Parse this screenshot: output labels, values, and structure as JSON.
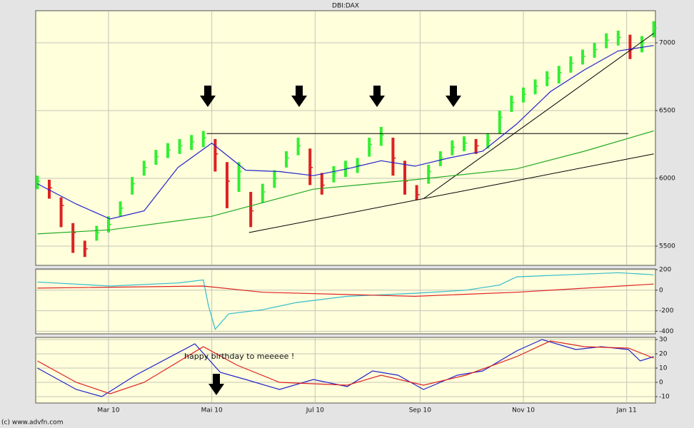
{
  "chart_data": [
    {
      "type": "ohlc",
      "title": "DBI:DAX",
      "x": [
        17,
        24,
        31,
        38,
        45,
        52,
        59,
        66,
        73,
        80,
        87,
        94,
        101,
        108,
        115,
        122,
        129,
        136,
        143,
        150,
        157,
        164,
        171,
        178,
        185,
        192,
        199,
        206,
        213,
        220,
        227,
        234,
        241,
        248,
        255,
        262,
        269,
        276,
        283,
        290,
        297,
        304,
        311,
        318,
        325,
        332,
        339,
        346,
        353,
        360,
        367,
        374,
        381
      ],
      "high": [
        6020,
        5990,
        5860,
        5670,
        5540,
        5650,
        5720,
        5830,
        6010,
        6130,
        6210,
        6260,
        6290,
        6320,
        6350,
        6290,
        6120,
        6120,
        5900,
        5960,
        6060,
        6200,
        6300,
        6220,
        6040,
        6090,
        6130,
        6150,
        6300,
        6380,
        6300,
        6130,
        5950,
        6100,
        6200,
        6280,
        6310,
        6290,
        6330,
        6500,
        6610,
        6670,
        6730,
        6790,
        6830,
        6900,
        6950,
        7000,
        7070,
        7090,
        7060,
        7050,
        7160
      ],
      "low": [
        5920,
        5850,
        5640,
        5450,
        5420,
        5540,
        5600,
        5720,
        5880,
        6020,
        6100,
        6150,
        6180,
        6210,
        6230,
        6050,
        5780,
        5900,
        5640,
        5820,
        5930,
        6080,
        6170,
        5950,
        5880,
        5970,
        6010,
        6040,
        6160,
        6240,
        6020,
        5880,
        5840,
        5960,
        6090,
        6170,
        6200,
        6180,
        6220,
        6330,
        6490,
        6560,
        6620,
        6680,
        6700,
        6780,
        6840,
        6890,
        6960,
        6980,
        6880,
        6930,
        7040
      ],
      "close": [
        5980,
        5930,
        5800,
        5600,
        5480,
        5600,
        5660,
        5780,
        5960,
        6080,
        6160,
        6210,
        6240,
        6270,
        6300,
        6180,
        5980,
        6050,
        5760,
        5900,
        6000,
        6150,
        6240,
        6080,
        5950,
        6040,
        6080,
        6100,
        6250,
        6320,
        6150,
        5980,
        5880,
        6050,
        6150,
        6230,
        6260,
        6240,
        6280,
        6450,
        6560,
        6620,
        6680,
        6740,
        6780,
        6850,
        6900,
        6950,
        7020,
        7040,
        6950,
        7000,
        7110
      ],
      "up_color": "#33ee33",
      "down_color": "#dd2222",
      "series": [
        {
          "color": "#2222cc",
          "x": [
            17,
            40,
            60,
            80,
            100,
            120,
            140,
            160,
            180,
            200,
            220,
            240,
            260,
            280,
            300,
            320,
            340,
            360,
            381
          ],
          "values": [
            5960,
            5810,
            5700,
            5760,
            6080,
            6260,
            6060,
            6050,
            6020,
            6070,
            6130,
            6090,
            6150,
            6200,
            6400,
            6640,
            6800,
            6940,
            6980
          ]
        },
        {
          "color": "#22aa22",
          "x": [
            17,
            60,
            120,
            180,
            240,
            300,
            340,
            381
          ],
          "values": [
            5590,
            5620,
            5720,
            5920,
            5990,
            6070,
            6200,
            6350
          ]
        }
      ],
      "trend_lines": [
        {
          "color": "#000000",
          "x": [
            117,
            366
          ],
          "values": [
            6330,
            6330
          ]
        },
        {
          "color": "#000000",
          "x": [
            142,
            381
          ],
          "values": [
            5600,
            6180
          ]
        },
        {
          "color": "#000000",
          "x": [
            245,
            381
          ],
          "values": [
            5850,
            7070
          ]
        }
      ],
      "xlim": [
        16,
        382
      ],
      "ylim": [
        5358,
        7237
      ],
      "yticks": [
        7000,
        6500,
        6000,
        5500
      ]
    },
    {
      "type": "line",
      "series": [
        {
          "color": "#33bbcc",
          "x": [
            17,
            60,
            100,
            115,
            118,
            122,
            130,
            150,
            170,
            200,
            240,
            270,
            290,
            300,
            330,
            360,
            381
          ],
          "values": [
            80,
            40,
            70,
            100,
            -150,
            -380,
            -230,
            -190,
            -120,
            -60,
            -30,
            0,
            50,
            130,
            150,
            170,
            150
          ]
        },
        {
          "color": "#dd2222",
          "x": [
            17,
            115,
            150,
            240,
            300,
            381
          ],
          "values": [
            20,
            40,
            -20,
            -60,
            -20,
            60
          ]
        }
      ],
      "xlim": [
        16,
        382
      ],
      "ylim": [
        -425,
        207
      ],
      "yticks": [
        200,
        0,
        -200,
        -400
      ]
    },
    {
      "type": "line",
      "annotation": "happy birthday to meeeee !",
      "series": [
        {
          "color": "#2222cc",
          "x": [
            17,
            40,
            55,
            75,
            110,
            125,
            140,
            160,
            180,
            200,
            215,
            230,
            245,
            265,
            280,
            300,
            315,
            335,
            350,
            366,
            373,
            381
          ],
          "values": [
            10,
            -5,
            -10,
            5,
            27,
            7,
            2,
            -5,
            2,
            -3,
            8,
            5,
            -5,
            5,
            8,
            22,
            30,
            23,
            25,
            23,
            15,
            18
          ]
        },
        {
          "color": "#dd2222",
          "x": [
            17,
            40,
            60,
            80,
            115,
            135,
            160,
            200,
            220,
            245,
            270,
            300,
            320,
            340,
            366,
            381
          ],
          "values": [
            15,
            0,
            -8,
            0,
            25,
            12,
            0,
            -2,
            5,
            -2,
            5,
            18,
            29,
            25,
            24,
            17
          ]
        }
      ],
      "xlim": [
        16,
        382
      ],
      "ylim": [
        -14.5,
        31.5
      ],
      "yticks": [
        30,
        20,
        10,
        0,
        -10
      ],
      "xticks": [
        {
          "value": 59,
          "label": "Mar 10"
        },
        {
          "value": 120,
          "label": "Mai 10"
        },
        {
          "value": 181,
          "label": "Jul 10"
        },
        {
          "value": 243,
          "label": "Sep 10"
        },
        {
          "value": 304,
          "label": "Nov 10"
        },
        {
          "value": 365,
          "label": "Jan 11"
        }
      ]
    }
  ],
  "footer": "(c) www.advfn.com"
}
